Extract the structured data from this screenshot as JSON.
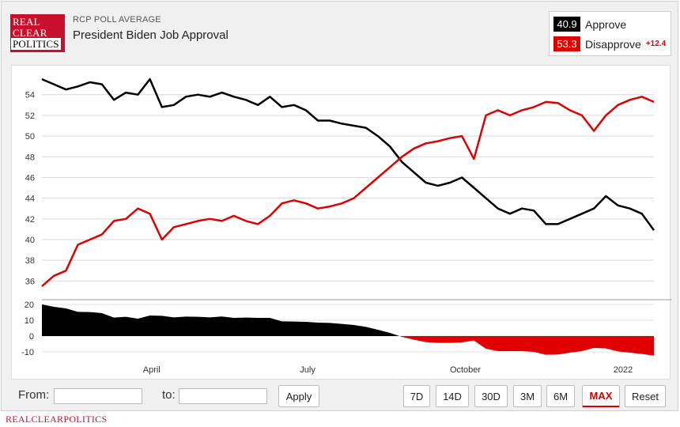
{
  "logo": {
    "line1": "REAL",
    "line2": "CLEAR",
    "line3": "POLITICS"
  },
  "header": {
    "eyebrow": "RCP POLL AVERAGE",
    "title": "President Biden Job Approval"
  },
  "legend": {
    "approve": {
      "value": "40.9",
      "label": "Approve",
      "color": "#000000"
    },
    "disapprove": {
      "value": "53.3",
      "label": "Disapprove",
      "spread": "+12.4",
      "color": "#e00000"
    }
  },
  "colors": {
    "approve": "#000000",
    "disapprove": "#e00000"
  },
  "controls": {
    "from_label": "From:",
    "to_label": "to:",
    "apply_label": "Apply",
    "ranges": [
      "7D",
      "14D",
      "30D",
      "3M",
      "6M",
      "MAX",
      "Reset"
    ],
    "active_range": "MAX"
  },
  "footer": {
    "brand": "REALCLEARPOLITICS"
  },
  "chart_data": [
    {
      "type": "line",
      "x_ticks": [
        "April",
        "July",
        "October",
        "2022"
      ],
      "ylim": [
        34.5,
        56.5
      ],
      "y_ticks": [
        "36",
        "38",
        "40",
        "42",
        "44",
        "46",
        "48",
        "50",
        "52",
        "54"
      ],
      "grid": true,
      "x": [
        "2021-01-27",
        "2021-02-03",
        "2021-02-10",
        "2021-02-17",
        "2021-02-24",
        "2021-03-03",
        "2021-03-10",
        "2021-03-17",
        "2021-03-24",
        "2021-03-31",
        "2021-04-07",
        "2021-04-14",
        "2021-04-21",
        "2021-04-28",
        "2021-05-05",
        "2021-05-12",
        "2021-05-19",
        "2021-05-26",
        "2021-06-02",
        "2021-06-09",
        "2021-06-16",
        "2021-06-23",
        "2021-06-30",
        "2021-07-07",
        "2021-07-14",
        "2021-07-21",
        "2021-07-28",
        "2021-08-04",
        "2021-08-11",
        "2021-08-18",
        "2021-08-25",
        "2021-09-01",
        "2021-09-08",
        "2021-09-15",
        "2021-09-22",
        "2021-09-29",
        "2021-10-06",
        "2021-10-13",
        "2021-10-20",
        "2021-10-27",
        "2021-11-03",
        "2021-11-10",
        "2021-11-17",
        "2021-11-24",
        "2021-12-01",
        "2021-12-08",
        "2021-12-15",
        "2021-12-22",
        "2021-12-29",
        "2022-01-05",
        "2022-01-12",
        "2022-01-19"
      ],
      "series": [
        {
          "name": "Approve",
          "color": "#000000",
          "values": [
            55.5,
            55.0,
            54.5,
            54.8,
            55.2,
            55.0,
            53.5,
            54.2,
            54.0,
            55.5,
            52.8,
            53.0,
            53.8,
            54.0,
            53.8,
            54.2,
            53.8,
            53.5,
            53.0,
            53.8,
            52.8,
            53.0,
            52.5,
            51.5,
            51.5,
            51.2,
            51.0,
            50.8,
            50.0,
            49.0,
            47.5,
            46.5,
            45.5,
            45.2,
            45.5,
            46.0,
            45.0,
            44.0,
            43.0,
            42.5,
            43.0,
            42.8,
            41.5,
            41.5,
            42.0,
            42.5,
            43.0,
            44.2,
            43.3,
            43.0,
            42.5,
            40.9
          ]
        },
        {
          "name": "Disapprove",
          "color": "#e00000",
          "values": [
            35.5,
            36.5,
            37.0,
            39.5,
            40.0,
            40.5,
            41.8,
            42.0,
            43.0,
            42.5,
            40.0,
            41.2,
            41.5,
            41.8,
            42.0,
            41.8,
            42.3,
            41.8,
            41.5,
            42.3,
            43.5,
            43.8,
            43.5,
            43.0,
            43.2,
            43.5,
            44.0,
            45.0,
            46.0,
            47.0,
            48.0,
            48.8,
            49.3,
            49.5,
            49.8,
            50.0,
            47.8,
            52.0,
            52.5,
            52.0,
            52.5,
            52.8,
            53.3,
            53.2,
            52.5,
            52.0,
            50.5,
            52.0,
            53.0,
            53.5,
            53.8,
            53.3
          ]
        },
        {
          "name": "Spread",
          "type": "area",
          "ylim": [
            -14,
            22
          ],
          "y_ticks": [
            "20",
            "10",
            "0",
            "-10"
          ],
          "values": [
            20.0,
            18.5,
            17.5,
            15.3,
            15.2,
            14.5,
            11.7,
            12.2,
            11.0,
            13.0,
            12.8,
            11.8,
            12.3,
            12.2,
            11.8,
            12.4,
            11.5,
            11.7,
            11.5,
            11.5,
            9.3,
            9.2,
            9.0,
            8.5,
            8.3,
            7.7,
            7.0,
            5.8,
            4.0,
            2.0,
            -0.5,
            -2.3,
            -3.8,
            -4.3,
            -4.3,
            -4.0,
            -2.8,
            -8.0,
            -9.5,
            -9.5,
            -9.5,
            -10.0,
            -11.8,
            -11.7,
            -10.5,
            -9.5,
            -7.5,
            -7.8,
            -9.7,
            -10.5,
            -11.3,
            -12.4
          ]
        }
      ]
    }
  ]
}
